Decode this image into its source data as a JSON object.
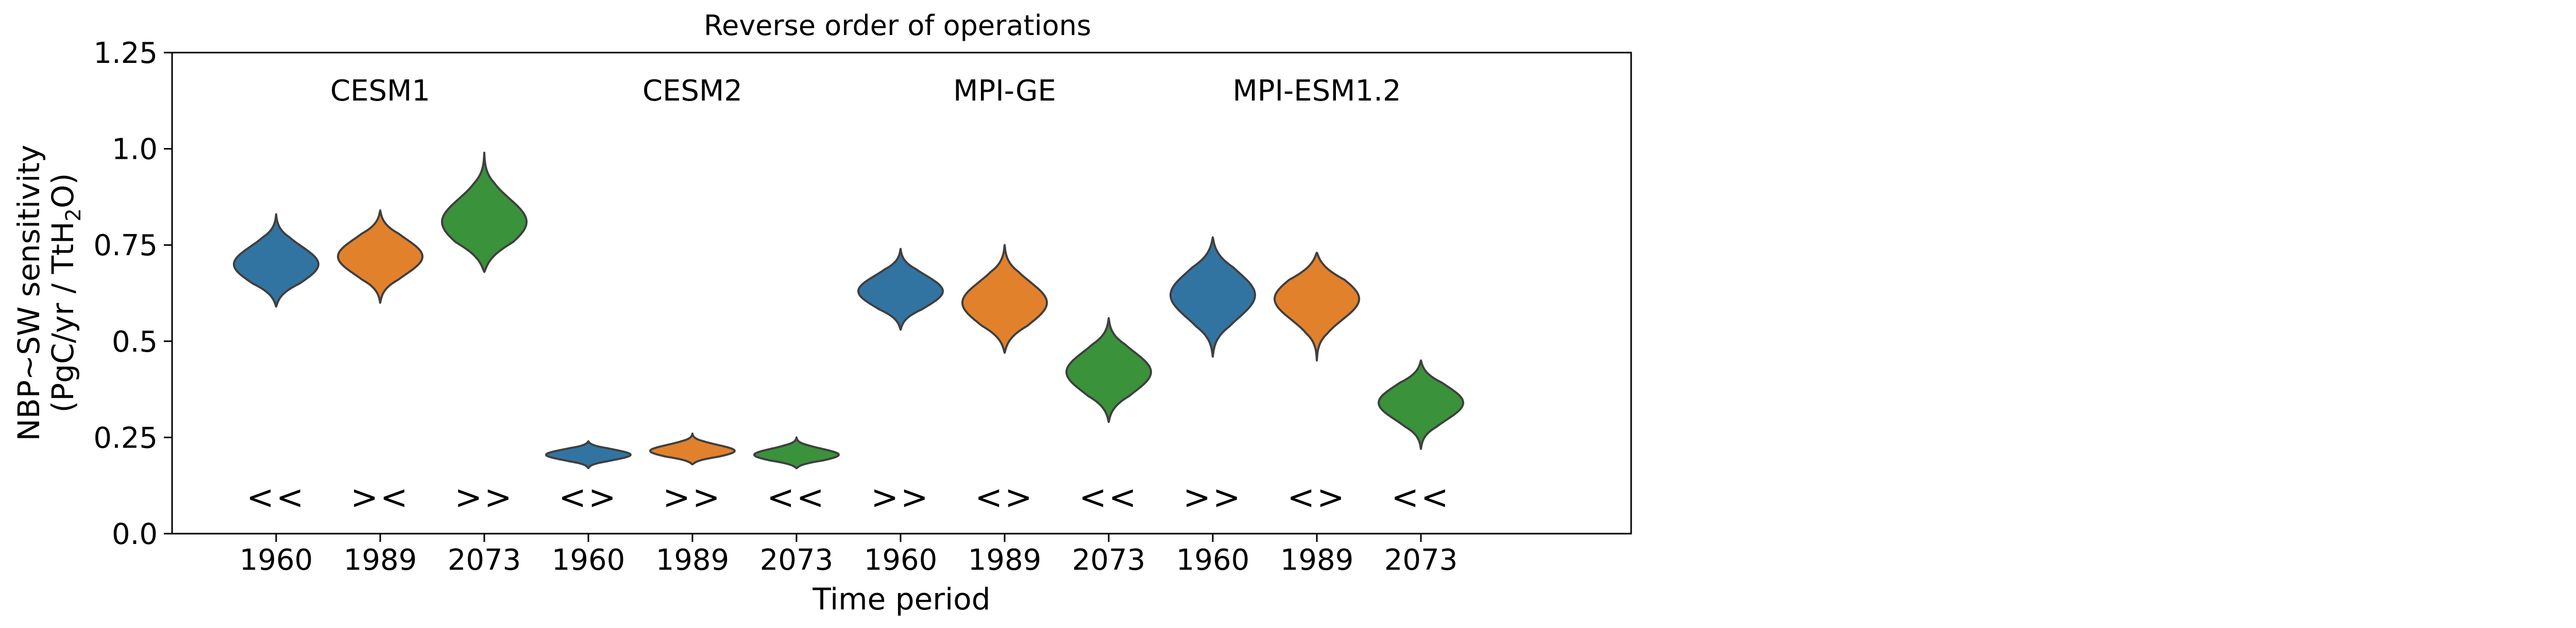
{
  "chart_data": {
    "type": "violin",
    "title": "Reverse order of operations",
    "xlabel": "Time period",
    "ylabel_line1": "NBP~SW sensitivity",
    "ylabel_line2_prefix": "(PgC/yr / TtH",
    "ylabel_line2_sub": "2",
    "ylabel_line2_suffix": "O)",
    "ylim": [
      0.0,
      1.25
    ],
    "yticks": [
      {
        "value": 0.0,
        "label": "0.0"
      },
      {
        "value": 0.25,
        "label": "0.25"
      },
      {
        "value": 0.5,
        "label": "0.5"
      },
      {
        "value": 0.75,
        "label": "0.75"
      },
      {
        "value": 1.0,
        "label": "1.0"
      },
      {
        "value": 1.25,
        "label": "1.25"
      }
    ],
    "grid": false,
    "series_colors": {
      "1960": "#3274a1",
      "1989": "#e1812c",
      "2073": "#3a923a"
    },
    "models": [
      {
        "name": "CESM1",
        "violins": [
          {
            "period": "1960",
            "median": 0.7,
            "min": 0.59,
            "max": 0.83,
            "marker": "<<"
          },
          {
            "period": "1989",
            "median": 0.72,
            "min": 0.6,
            "max": 0.84,
            "marker": "><"
          },
          {
            "period": "2073",
            "median": 0.81,
            "min": 0.68,
            "max": 0.99,
            "marker": ">>"
          }
        ]
      },
      {
        "name": "CESM2",
        "violins": [
          {
            "period": "1960",
            "median": 0.205,
            "min": 0.17,
            "max": 0.24,
            "marker": "<>"
          },
          {
            "period": "1989",
            "median": 0.215,
            "min": 0.18,
            "max": 0.26,
            "marker": ">>"
          },
          {
            "period": "2073",
            "median": 0.205,
            "min": 0.17,
            "max": 0.25,
            "marker": "<<"
          }
        ]
      },
      {
        "name": "MPI-GE",
        "violins": [
          {
            "period": "1960",
            "median": 0.63,
            "min": 0.53,
            "max": 0.74,
            "marker": ">>"
          },
          {
            "period": "1989",
            "median": 0.6,
            "min": 0.47,
            "max": 0.75,
            "marker": "<>"
          },
          {
            "period": "2073",
            "median": 0.42,
            "min": 0.29,
            "max": 0.56,
            "marker": "<<"
          }
        ]
      },
      {
        "name": "MPI-ESM1.2",
        "violins": [
          {
            "period": "1960",
            "median": 0.62,
            "min": 0.46,
            "max": 0.77,
            "marker": ">>"
          },
          {
            "period": "1989",
            "median": 0.61,
            "min": 0.45,
            "max": 0.73,
            "marker": "<>"
          },
          {
            "period": "2073",
            "median": 0.34,
            "min": 0.22,
            "max": 0.45,
            "marker": "<<"
          }
        ]
      }
    ]
  }
}
